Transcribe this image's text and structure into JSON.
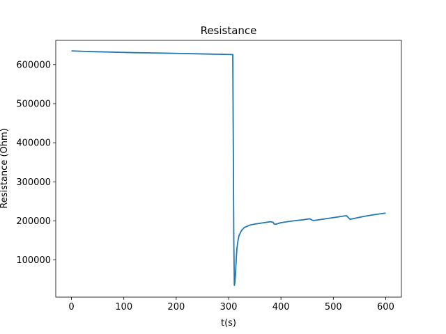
{
  "chart_data": {
    "type": "line",
    "title": "Resistance",
    "xlabel": "t(s)",
    "ylabel": "Resistance (Ohm)",
    "xlim": [
      -30,
      630
    ],
    "ylim": [
      5000,
      662000
    ],
    "xticks": [
      0,
      100,
      200,
      300,
      400,
      500,
      600
    ],
    "yticks": [
      100000,
      200000,
      300000,
      400000,
      500000,
      600000
    ],
    "grid": false,
    "line_color": "#1f77b4",
    "series": [
      {
        "x": [
          0,
          30,
          60,
          90,
          120,
          150,
          180,
          210,
          240,
          270,
          300,
          308,
          309,
          310,
          311,
          312,
          313,
          314,
          315,
          316,
          318,
          320,
          325,
          330,
          340,
          350,
          360,
          370,
          380,
          385,
          387,
          390,
          395,
          400,
          420,
          440,
          455,
          458,
          462,
          470,
          490,
          510,
          525,
          528,
          532,
          540,
          560,
          580,
          600
        ],
        "y": [
          635000,
          633500,
          632500,
          631500,
          630500,
          630000,
          629200,
          628400,
          627600,
          626700,
          626000,
          625600,
          400000,
          150000,
          35000,
          42000,
          60000,
          85000,
          110000,
          130000,
          150000,
          163000,
          176000,
          183000,
          189000,
          192000,
          194000,
          196000,
          198000,
          196500,
          192000,
          191500,
          193500,
          195500,
          199500,
          202500,
          205500,
          203000,
          201000,
          202500,
          206500,
          210500,
          213500,
          209500,
          204000,
          206500,
          212000,
          216500,
          220000
        ]
      }
    ]
  }
}
